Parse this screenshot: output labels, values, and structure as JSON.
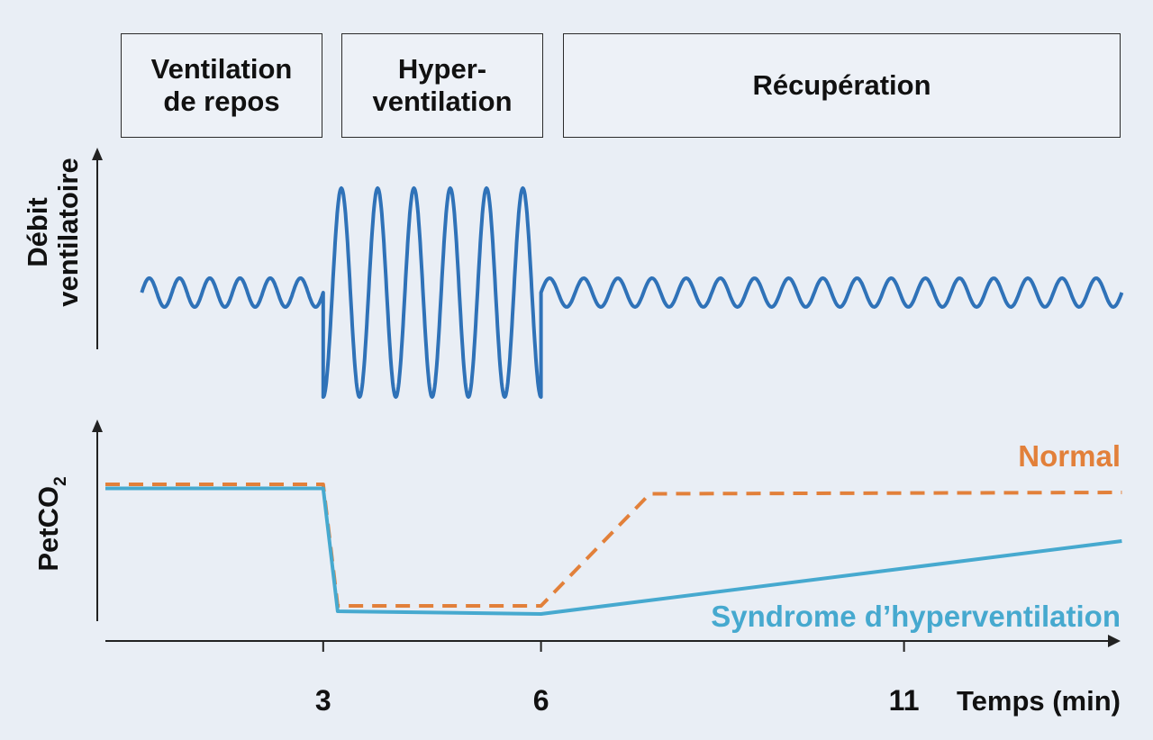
{
  "phases": [
    "Ventilation\nde repos",
    "Hyper-\nventilation",
    "Récupération"
  ],
  "chart_data": [
    {
      "type": "line",
      "ylabel": "Débit\nventilatoire",
      "title": "",
      "series": [
        {
          "phases": [
            {
              "from": 0.5,
              "to": 3.0,
              "amplitude": "small",
              "cycles": 6
            },
            {
              "from": 3.0,
              "to": 6.0,
              "amplitude": "large",
              "cycles": 6
            },
            {
              "from": 6.0,
              "to": 14.0,
              "amplitude": "small",
              "cycles": 17
            }
          ],
          "color": "#2f72b8"
        }
      ]
    },
    {
      "type": "line",
      "ylabel": "PetCO2",
      "xlabel": "Temps (min)",
      "xticks": [
        3,
        6,
        11
      ],
      "xlim": [
        0,
        14
      ],
      "ylim": [
        0,
        1
      ],
      "series": [
        {
          "name": "Normal",
          "style": "dashed",
          "color": "#e2803a",
          "x": [
            0.0,
            3.0,
            3.2,
            6.0,
            7.5,
            14.0
          ],
          "y": [
            1.0,
            1.0,
            0.1,
            0.1,
            0.93,
            0.94
          ]
        },
        {
          "name": "Syndrome d’hyperventilation",
          "style": "solid",
          "color": "#46a9cf",
          "x": [
            0.0,
            3.0,
            3.2,
            6.0,
            14.0
          ],
          "y": [
            0.97,
            0.97,
            0.06,
            0.04,
            0.58
          ]
        }
      ]
    }
  ]
}
